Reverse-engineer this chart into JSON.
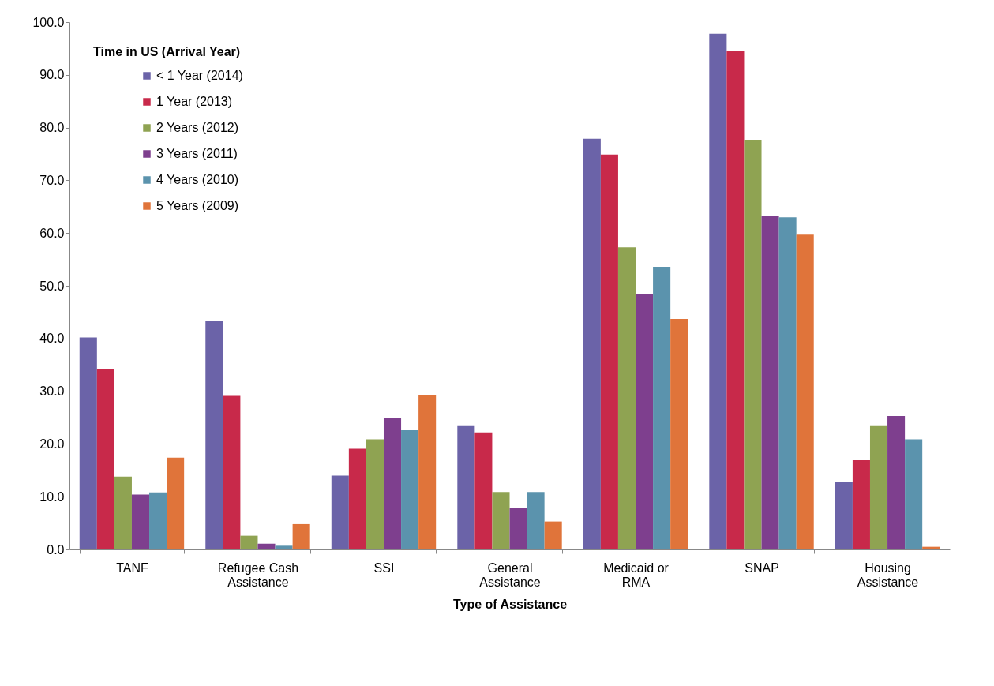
{
  "chart_data": {
    "type": "bar",
    "xlabel": "Type of Assistance",
    "legend_title": "Time in US (Arrival Year)",
    "legend": "top left",
    "grid": false,
    "categories": [
      "TANF",
      "Refugee Cash Assistance",
      "SSI",
      "General Assistance",
      "Medicaid or RMA",
      "SNAP",
      "Housing Assistance"
    ],
    "ylim": [
      0,
      100
    ],
    "yticks": [
      {
        "value": 0,
        "label": "0.0"
      },
      {
        "value": 10,
        "label": "10.0"
      },
      {
        "value": 20,
        "label": "20.0"
      },
      {
        "value": 30,
        "label": "30.0"
      },
      {
        "value": 40,
        "label": "40.0"
      },
      {
        "value": 50,
        "label": "50.0"
      },
      {
        "value": 60,
        "label": "60.0"
      },
      {
        "value": 70,
        "label": "70.0"
      },
      {
        "value": 80,
        "label": "80.0"
      },
      {
        "value": 90,
        "label": "90.0"
      },
      {
        "value": 100,
        "label": "100.0"
      }
    ],
    "series": [
      {
        "name": "< 1 Year (2014)",
        "color": "#6b63a8",
        "values": [
          40.2,
          43.4,
          14.0,
          23.4,
          77.9,
          97.8,
          12.8
        ]
      },
      {
        "name": "1 Year (2013)",
        "color": "#c8294a",
        "values": [
          34.3,
          29.1,
          19.1,
          22.2,
          74.9,
          94.6,
          16.9
        ]
      },
      {
        "name": "2 Years (2012)",
        "color": "#8fa352",
        "values": [
          13.8,
          2.6,
          20.9,
          10.9,
          57.3,
          77.7,
          23.4
        ]
      },
      {
        "name": "3 Years (2011)",
        "color": "#7e3f8e",
        "values": [
          10.4,
          1.1,
          24.9,
          7.9,
          48.4,
          63.3,
          25.3
        ]
      },
      {
        "name": "4 Years (2010)",
        "color": "#5b93ad",
        "values": [
          10.8,
          0.7,
          22.6,
          10.9,
          53.6,
          63.0,
          20.9
        ]
      },
      {
        "name": "5 Years (2009)",
        "color": "#e0743a",
        "values": [
          17.4,
          4.8,
          29.3,
          5.3,
          43.7,
          59.7,
          0.5
        ]
      }
    ]
  }
}
